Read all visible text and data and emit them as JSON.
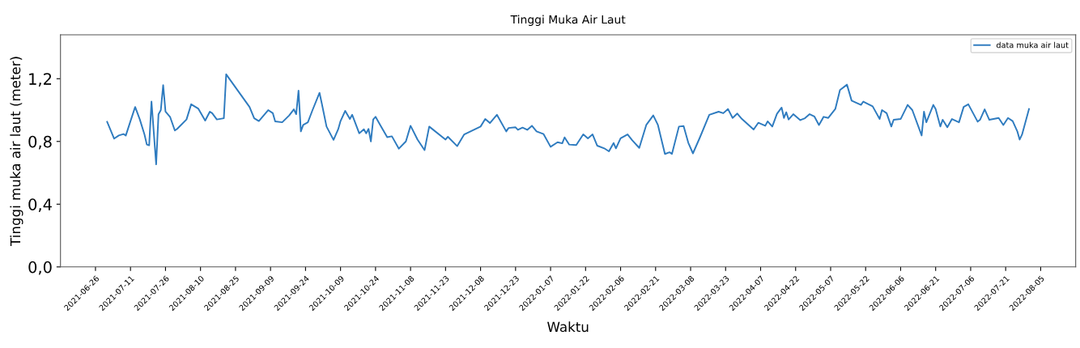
{
  "chart_data": {
    "type": "line",
    "title": "Tinggi Muka Air Laut",
    "xlabel": "Waktu",
    "ylabel": "Tinggi muka air laut (meter)",
    "x": [
      "2021-07-01",
      "2021-07-04",
      "2021-07-06",
      "2021-07-08",
      "2021-07-09",
      "2021-07-11",
      "2021-07-13",
      "2021-07-15",
      "2021-07-17",
      "2021-07-18",
      "2021-07-19",
      "2021-07-20",
      "2021-07-22",
      "2021-07-23",
      "2021-07-24",
      "2021-07-25",
      "2021-07-26",
      "2021-07-28",
      "2021-07-30",
      "2021-07-31",
      "2021-08-04",
      "2021-08-06",
      "2021-08-09",
      "2021-08-12",
      "2021-08-14",
      "2021-08-15",
      "2021-08-17",
      "2021-08-20",
      "2021-08-21",
      "2021-08-31",
      "2021-09-02",
      "2021-09-04",
      "2021-09-08",
      "2021-09-10",
      "2021-09-11",
      "2021-09-14",
      "2021-09-17",
      "2021-09-19",
      "2021-09-20",
      "2021-09-21",
      "2021-09-22",
      "2021-09-23",
      "2021-09-25",
      "2021-09-27",
      "2021-09-30",
      "2021-10-01",
      "2021-10-03",
      "2021-10-06",
      "2021-10-08",
      "2021-10-09",
      "2021-10-11",
      "2021-10-13",
      "2021-10-14",
      "2021-10-17",
      "2021-10-19",
      "2021-10-20",
      "2021-10-21",
      "2021-10-22",
      "2021-10-23",
      "2021-10-24",
      "2021-10-26",
      "2021-10-29",
      "2021-10-31",
      "2021-11-03",
      "2021-11-06",
      "2021-11-08",
      "2021-11-11",
      "2021-11-14",
      "2021-11-16",
      "2021-11-23",
      "2021-11-24",
      "2021-11-28",
      "2021-12-01",
      "2021-12-08",
      "2021-12-10",
      "2021-12-12",
      "2021-12-15",
      "2021-12-19",
      "2021-12-20",
      "2021-12-23",
      "2021-12-24",
      "2021-12-26",
      "2021-12-28",
      "2021-12-30",
      "2022-01-01",
      "2022-01-04",
      "2022-01-07",
      "2022-01-10",
      "2022-01-12",
      "2022-01-13",
      "2022-01-15",
      "2022-01-18",
      "2022-01-21",
      "2022-01-23",
      "2022-01-25",
      "2022-01-27",
      "2022-01-30",
      "2022-02-01",
      "2022-02-03",
      "2022-02-04",
      "2022-02-06",
      "2022-02-09",
      "2022-02-11",
      "2022-02-14",
      "2022-02-17",
      "2022-02-20",
      "2022-02-22",
      "2022-02-25",
      "2022-02-27",
      "2022-02-28",
      "2022-03-03",
      "2022-03-05",
      "2022-03-07",
      "2022-03-09",
      "2022-03-12",
      "2022-03-16",
      "2022-03-20",
      "2022-03-22",
      "2022-03-24",
      "2022-03-26",
      "2022-03-28",
      "2022-03-30",
      "2022-04-04",
      "2022-04-06",
      "2022-04-09",
      "2022-04-10",
      "2022-04-12",
      "2022-04-14",
      "2022-04-16",
      "2022-04-17",
      "2022-04-18",
      "2022-04-19",
      "2022-04-21",
      "2022-04-24",
      "2022-04-26",
      "2022-04-28",
      "2022-04-30",
      "2022-05-02",
      "2022-05-04",
      "2022-05-06",
      "2022-05-09",
      "2022-05-11",
      "2022-05-14",
      "2022-05-16",
      "2022-05-20",
      "2022-05-21",
      "2022-05-25",
      "2022-05-28",
      "2022-05-29",
      "2022-05-31",
      "2022-06-02",
      "2022-06-03",
      "2022-06-06",
      "2022-06-09",
      "2022-06-11",
      "2022-06-15",
      "2022-06-16",
      "2022-06-17",
      "2022-06-20",
      "2022-06-21",
      "2022-06-23",
      "2022-06-24",
      "2022-06-26",
      "2022-06-28",
      "2022-07-01",
      "2022-07-03",
      "2022-07-05",
      "2022-07-09",
      "2022-07-10",
      "2022-07-12",
      "2022-07-14",
      "2022-07-18",
      "2022-07-20",
      "2022-07-22",
      "2022-07-24",
      "2022-07-26",
      "2022-07-27",
      "2022-07-28",
      "2022-07-31"
    ],
    "series": [
      {
        "name": "data muka air laut",
        "color": "#2e7bbf",
        "values": [
          0.925,
          0.818,
          0.838,
          0.847,
          0.838,
          0.93,
          1.02,
          0.94,
          0.844,
          0.78,
          0.775,
          1.054,
          0.654,
          0.973,
          1.0,
          1.159,
          0.99,
          0.955,
          0.87,
          0.88,
          0.94,
          1.037,
          1.01,
          0.933,
          0.99,
          0.98,
          0.94,
          0.948,
          1.228,
          1.02,
          0.948,
          0.93,
          1.0,
          0.98,
          0.928,
          0.922,
          0.966,
          1.005,
          0.974,
          1.124,
          0.864,
          0.905,
          0.922,
          1.0,
          1.11,
          1.04,
          0.895,
          0.81,
          0.878,
          0.93,
          0.995,
          0.943,
          0.97,
          0.852,
          0.878,
          0.852,
          0.88,
          0.8,
          0.94,
          0.957,
          0.905,
          0.827,
          0.833,
          0.754,
          0.8,
          0.9,
          0.812,
          0.745,
          0.895,
          0.812,
          0.83,
          0.77,
          0.845,
          0.895,
          0.943,
          0.917,
          0.97,
          0.864,
          0.886,
          0.89,
          0.874,
          0.888,
          0.874,
          0.9,
          0.864,
          0.847,
          0.766,
          0.795,
          0.788,
          0.826,
          0.78,
          0.777,
          0.845,
          0.82,
          0.845,
          0.773,
          0.756,
          0.737,
          0.79,
          0.756,
          0.82,
          0.845,
          0.807,
          0.759,
          0.905,
          0.966,
          0.905,
          0.72,
          0.731,
          0.72,
          0.895,
          0.898,
          0.792,
          0.724,
          0.826,
          0.97,
          0.99,
          0.98,
          1.007,
          0.95,
          0.978,
          0.943,
          0.876,
          0.919,
          0.9,
          0.928,
          0.895,
          0.976,
          1.016,
          0.95,
          0.986,
          0.94,
          0.974,
          0.936,
          0.948,
          0.974,
          0.96,
          0.905,
          0.957,
          0.95,
          1.007,
          1.128,
          1.162,
          1.06,
          1.033,
          1.054,
          1.024,
          0.943,
          1.0,
          0.98,
          0.895,
          0.938,
          0.943,
          1.033,
          1.0,
          0.838,
          0.99,
          0.922,
          1.033,
          1.007,
          0.895,
          0.938,
          0.891,
          0.943,
          0.922,
          1.02,
          1.037,
          0.926,
          0.938,
          1.005,
          0.938,
          0.95,
          0.905,
          0.95,
          0.93,
          0.864,
          0.812,
          0.843,
          1.007
        ]
      }
    ],
    "xlim": [
      "2021-06-11",
      "2022-08-20"
    ],
    "ylim": [
      0,
      1.48
    ],
    "xticks": [
      "2021-06-26",
      "2021-07-11",
      "2021-07-26",
      "2021-08-10",
      "2021-08-25",
      "2021-09-09",
      "2021-09-24",
      "2021-10-09",
      "2021-10-24",
      "2021-11-08",
      "2021-11-23",
      "2021-12-08",
      "2021-12-23",
      "2022-01-07",
      "2022-01-22",
      "2022-02-06",
      "2022-02-21",
      "2022-03-08",
      "2022-03-23",
      "2022-04-07",
      "2022-04-22",
      "2022-05-07",
      "2022-05-22",
      "2022-06-06",
      "2022-06-21",
      "2022-07-06",
      "2022-07-21",
      "2022-08-05"
    ],
    "yticks": [
      {
        "value": 0,
        "label": "0,0"
      },
      {
        "value": 0.4,
        "label": "0,4"
      },
      {
        "value": 0.8,
        "label": "0,8"
      },
      {
        "value": 1.2,
        "label": "1,2"
      }
    ],
    "legend": "top right",
    "grid": false,
    "line_style": "solid",
    "marker": "none"
  }
}
